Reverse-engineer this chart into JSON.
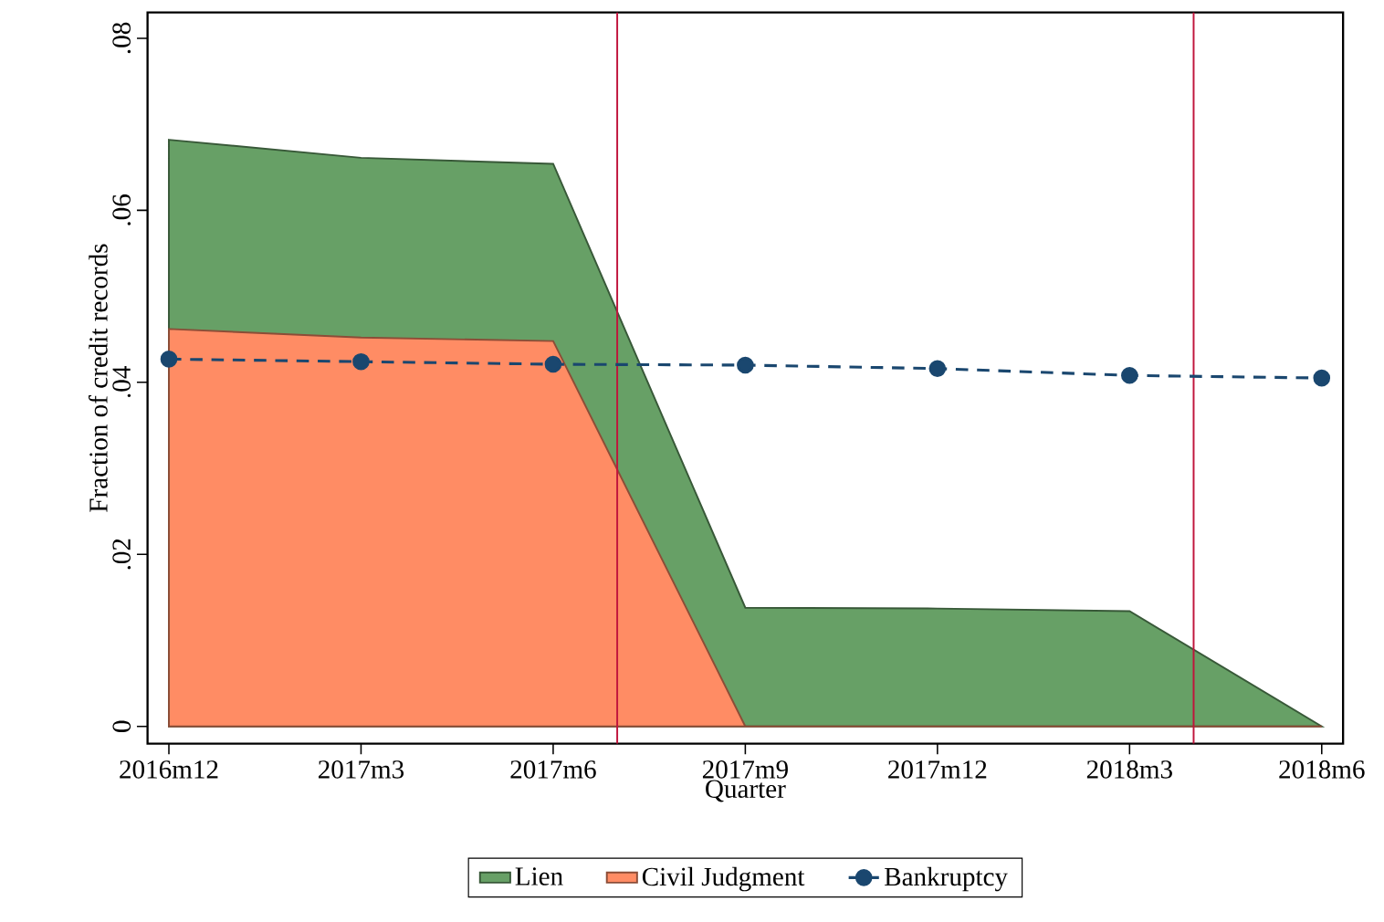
{
  "chart_data": {
    "type": "area",
    "xlabel": "Quarter",
    "ylabel": "Fraction of credit records",
    "x": [
      "2016-12",
      "2017-03",
      "2017-06",
      "2017-09",
      "2017-12",
      "2018-03",
      "2018-06"
    ],
    "xlim": [
      "2016-11-21",
      "2018-06-11"
    ],
    "xticks": [
      {
        "value": "2016-12",
        "label": "2016m12"
      },
      {
        "value": "2017-03",
        "label": "2017m3"
      },
      {
        "value": "2017-06",
        "label": "2017m6"
      },
      {
        "value": "2017-09",
        "label": "2017m9"
      },
      {
        "value": "2017-12",
        "label": "2017m12"
      },
      {
        "value": "2018-03",
        "label": "2018m3"
      },
      {
        "value": "2018-06",
        "label": "2018m6"
      }
    ],
    "ylim": [
      -0.002,
      0.083
    ],
    "yticks": [
      0,
      {
        "value": 0.02,
        "label": ".02"
      },
      {
        "value": 0.04,
        "label": ".04"
      },
      {
        "value": 0.06,
        "label": ".06"
      },
      {
        "value": 0.08,
        "label": ".08"
      }
    ],
    "series": [
      {
        "name": "Lien",
        "color": "#67a066",
        "values": [
          0.0682,
          0.0661,
          0.0654,
          0.0138,
          0.0137,
          0.0134,
          0
        ]
      },
      {
        "name": "Civil Judgment",
        "color": "#ff8c64",
        "values": [
          0.0462,
          0.0452,
          0.0448,
          0,
          0,
          0,
          0
        ]
      },
      {
        "name": "Bankruptcy",
        "type": "line",
        "color": "#1a476f",
        "marker": "circle",
        "line_style": "dashed",
        "values": [
          0.0427,
          0.0424,
          0.0421,
          0.042,
          0.0416,
          0.0408,
          0.0405
        ]
      }
    ],
    "ref_lines": [
      {
        "axis": "x",
        "value": "2017-07",
        "color": "#c0143c"
      },
      {
        "axis": "x",
        "value": "2018-04",
        "color": "#c0143c"
      }
    ],
    "legend": "bottom",
    "grid": false
  }
}
